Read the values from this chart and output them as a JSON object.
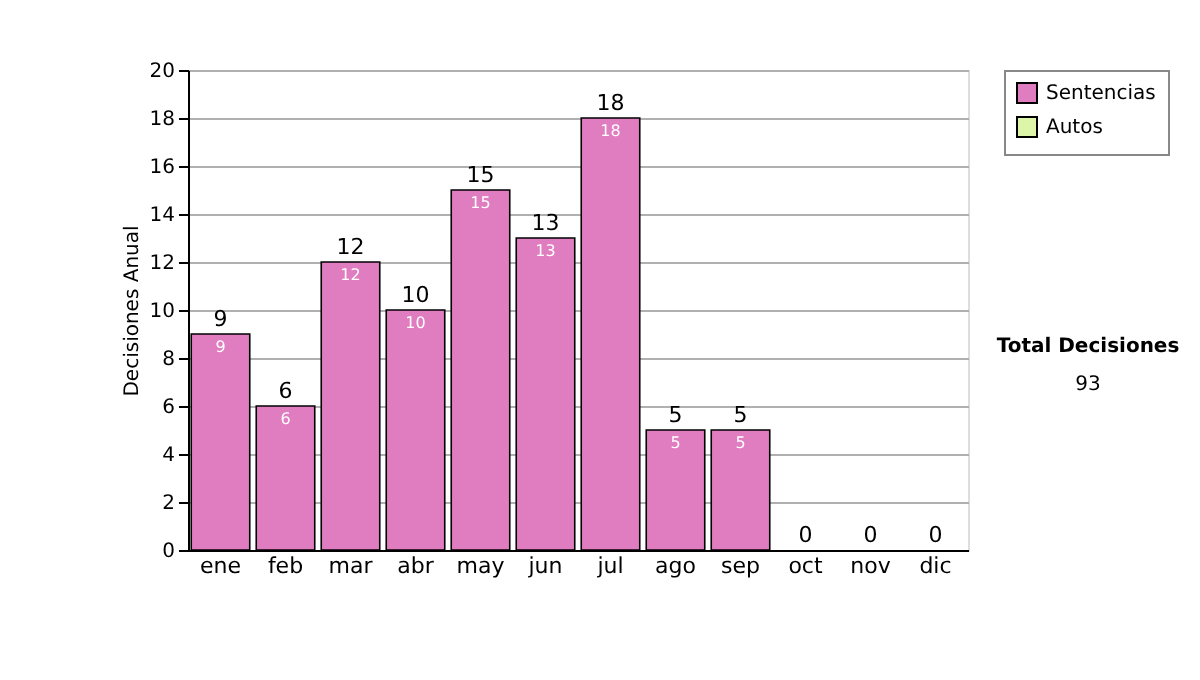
{
  "chart_data": {
    "type": "bar",
    "stacked": true,
    "ylabel": "Decisiones Anual",
    "categories": [
      "ene",
      "feb",
      "mar",
      "abr",
      "may",
      "jun",
      "jul",
      "ago",
      "sep",
      "oct",
      "nov",
      "dic"
    ],
    "series": [
      {
        "name": "Sentencias",
        "color": "#e07cc0",
        "values": [
          9,
          6,
          12,
          10,
          15,
          13,
          18,
          5,
          5,
          0,
          0,
          0
        ],
        "value_labels": [
          "9",
          "6",
          "12",
          "10",
          "15",
          "13",
          "18",
          "5",
          "5",
          null,
          null,
          null
        ]
      },
      {
        "name": "Autos",
        "color": "#ddf5a8",
        "values": [
          0,
          0,
          0,
          0,
          0,
          0,
          0,
          0,
          0,
          0,
          0,
          0
        ]
      }
    ],
    "totals": [
      "9",
      "6",
      "12",
      "10",
      "15",
      "13",
      "18",
      "5",
      "5",
      "0",
      "0",
      "0"
    ],
    "ylim": [
      0,
      20
    ],
    "yticks": [
      0,
      2,
      4,
      6,
      8,
      10,
      12,
      14,
      16,
      18,
      20
    ],
    "grid": "y",
    "legend": "right",
    "annotations": [
      "Total Decisiones",
      "93"
    ]
  }
}
